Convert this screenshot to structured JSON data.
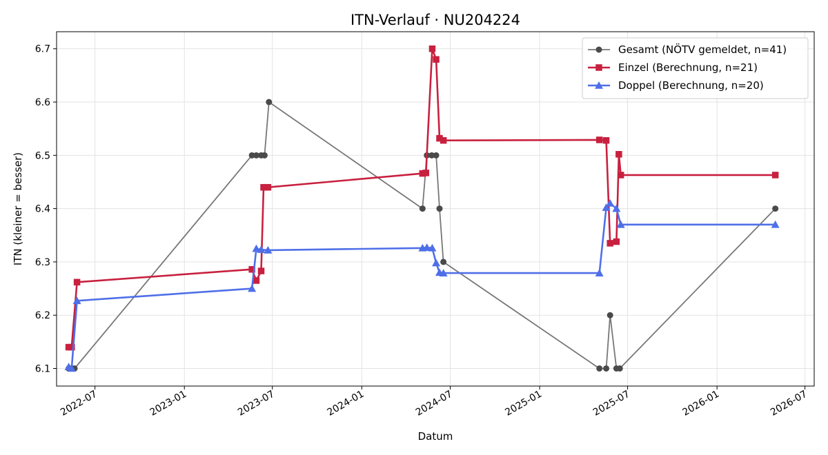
{
  "chart_data": {
    "type": "line",
    "title": "ITN-Verlauf · NU204224",
    "xlabel": "Datum",
    "ylabel": "ITN  (kleiner = besser)",
    "xlim": [
      "2022-04-13",
      "2026-07-20"
    ],
    "ylim": [
      6.067,
      6.732
    ],
    "x_ticks": [
      "2022-07",
      "2023-01",
      "2023-07",
      "2024-01",
      "2024-07",
      "2025-01",
      "2025-07",
      "2026-01",
      "2026-07"
    ],
    "y_ticks": [
      "6.1",
      "6.2",
      "6.3",
      "6.4",
      "6.5",
      "6.6",
      "6.7"
    ],
    "grid": true,
    "legend_position": "top-right",
    "series": [
      {
        "name": "Gesamt (NÖTV gemeldet, n=41)",
        "color": "#777777",
        "marker": "circle",
        "points": [
          [
            "2022-05-08",
            6.1
          ],
          [
            "2022-05-12",
            6.1
          ],
          [
            "2022-05-16",
            6.1
          ],
          [
            "2022-05-20",
            6.1
          ],
          [
            "2023-05-20",
            6.5
          ],
          [
            "2023-05-29",
            6.5
          ],
          [
            "2023-06-08",
            6.5
          ],
          [
            "2023-06-15",
            6.5
          ],
          [
            "2023-06-24",
            6.6
          ],
          [
            "2024-05-05",
            6.4
          ],
          [
            "2024-05-14",
            6.5
          ],
          [
            "2024-05-24",
            6.5
          ],
          [
            "2024-06-02",
            6.5
          ],
          [
            "2024-06-09",
            6.4
          ],
          [
            "2024-06-17",
            6.3
          ],
          [
            "2025-05-04",
            6.1
          ],
          [
            "2025-05-18",
            6.1
          ],
          [
            "2025-05-26",
            6.2
          ],
          [
            "2025-06-08",
            6.1
          ],
          [
            "2025-06-15",
            6.1
          ],
          [
            "2026-05-01",
            6.4
          ]
        ]
      },
      {
        "name": "Einzel (Berechnung, n=21)",
        "color": "#c8203f",
        "marker": "square",
        "points": [
          [
            "2022-05-08",
            6.14
          ],
          [
            "2022-05-14",
            6.14
          ],
          [
            "2022-05-25",
            6.262
          ],
          [
            "2023-05-20",
            6.286
          ],
          [
            "2023-05-29",
            6.265
          ],
          [
            "2023-06-08",
            6.283
          ],
          [
            "2023-06-13",
            6.44
          ],
          [
            "2023-06-22",
            6.44
          ],
          [
            "2024-05-05",
            6.466
          ],
          [
            "2024-05-12",
            6.467
          ],
          [
            "2024-05-25",
            6.7
          ],
          [
            "2024-06-02",
            6.68
          ],
          [
            "2024-06-09",
            6.532
          ],
          [
            "2024-06-17",
            6.528
          ],
          [
            "2025-05-04",
            6.529
          ],
          [
            "2025-05-18",
            6.528
          ],
          [
            "2025-05-26",
            6.335
          ],
          [
            "2025-06-08",
            6.338
          ],
          [
            "2025-06-13",
            6.502
          ],
          [
            "2025-06-17",
            6.463
          ],
          [
            "2026-05-01",
            6.463
          ]
        ]
      },
      {
        "name": "Doppel (Berechnung, n=20)",
        "color": "#4f6fe8",
        "marker": "triangle",
        "points": [
          [
            "2022-05-08",
            6.103
          ],
          [
            "2022-05-14",
            6.1
          ],
          [
            "2022-05-25",
            6.227
          ],
          [
            "2023-05-20",
            6.25
          ],
          [
            "2023-05-29",
            6.325
          ],
          [
            "2023-06-08",
            6.323
          ],
          [
            "2023-06-22",
            6.322
          ],
          [
            "2024-05-05",
            6.326
          ],
          [
            "2024-05-14",
            6.327
          ],
          [
            "2024-05-25",
            6.326
          ],
          [
            "2024-06-02",
            6.298
          ],
          [
            "2024-06-09",
            6.28
          ],
          [
            "2024-06-17",
            6.279
          ],
          [
            "2025-05-04",
            6.279
          ],
          [
            "2025-05-18",
            6.402
          ],
          [
            "2025-05-26",
            6.41
          ],
          [
            "2025-06-08",
            6.4
          ],
          [
            "2025-06-17",
            6.37
          ],
          [
            "2026-05-01",
            6.37
          ]
        ]
      }
    ]
  }
}
